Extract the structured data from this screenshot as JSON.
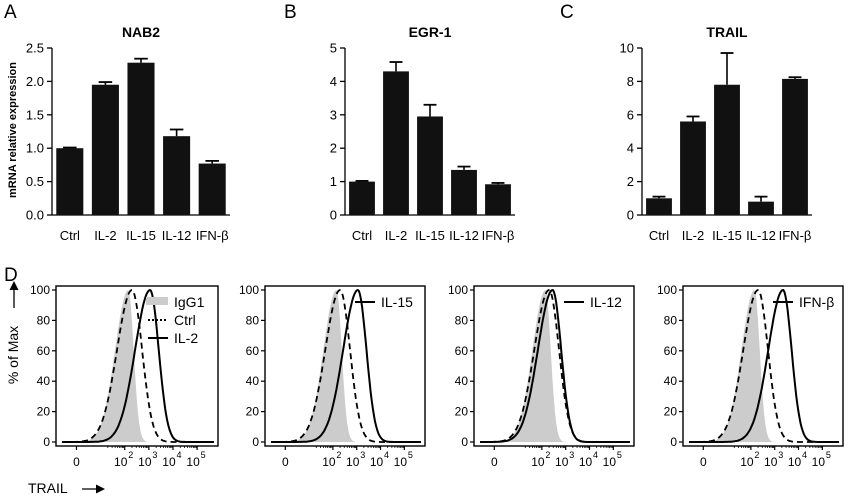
{
  "figure": {
    "panel_labels": [
      "A",
      "B",
      "C",
      "D"
    ],
    "y_axis_title": "mRNA relative expression",
    "hist_y_title": "% of Max",
    "hist_x_title": "TRAIL",
    "bar_color": "#111111",
    "isotype_fill": "#cccccc"
  },
  "chart_data": [
    {
      "type": "bar",
      "title": "NAB2",
      "ylabel": "mRNA relative expression",
      "categories": [
        "Ctrl",
        "IL-2",
        "IL-15",
        "IL-12",
        "IFN-β"
      ],
      "values": [
        1.0,
        1.95,
        2.28,
        1.18,
        0.77
      ],
      "errors": [
        0.01,
        0.04,
        0.06,
        0.1,
        0.04
      ],
      "ylim": [
        0,
        2.5
      ],
      "yticks": [
        "0.0",
        "0.5",
        "1.0",
        "1.5",
        "2.0",
        "2.5"
      ]
    },
    {
      "type": "bar",
      "title": "EGR-1",
      "ylabel": "",
      "categories": [
        "Ctrl",
        "IL-2",
        "IL-15",
        "IL-12",
        "IFN-β"
      ],
      "values": [
        1.0,
        4.3,
        2.95,
        1.35,
        0.92
      ],
      "errors": [
        0.02,
        0.28,
        0.35,
        0.1,
        0.04
      ],
      "ylim": [
        0,
        5
      ],
      "yticks": [
        "0",
        "1",
        "2",
        "3",
        "4",
        "5"
      ]
    },
    {
      "type": "bar",
      "title": "TRAIL",
      "ylabel": "",
      "categories": [
        "Ctrl",
        "IL-2",
        "IL-15",
        "IL-12",
        "IFN-β"
      ],
      "values": [
        1.0,
        5.6,
        7.8,
        0.8,
        8.15
      ],
      "errors": [
        0.1,
        0.3,
        1.9,
        0.3,
        0.1
      ],
      "ylim": [
        0,
        10
      ],
      "yticks": [
        "0",
        "2",
        "4",
        "6",
        "8",
        "10"
      ]
    },
    {
      "type": "area",
      "legend": [
        {
          "label": "IgG1",
          "style": "filled-gray"
        },
        {
          "label": "Ctrl",
          "style": "dotted"
        },
        {
          "label": "IL-2",
          "style": "solid"
        }
      ],
      "x_scale": "log",
      "xticks": [
        "0",
        "10^2",
        "10^3",
        "10^4",
        "10^5"
      ],
      "yticks": [
        "0",
        "20",
        "40",
        "60",
        "80",
        "100"
      ],
      "ylim": [
        0,
        100
      ],
      "series": {
        "IgG1": {
          "peak_decade": 2.15
        },
        "Ctrl": {
          "peak_decade": 2.3
        },
        "IL-2": {
          "peak_decade": 3.05
        }
      }
    },
    {
      "type": "area",
      "legend": [
        {
          "label": "IL-15",
          "style": "solid"
        }
      ],
      "x_scale": "log",
      "xticks": [
        "0",
        "10^2",
        "10^3",
        "10^4",
        "10^5"
      ],
      "yticks": [
        "0",
        "20",
        "40",
        "60",
        "80",
        "100"
      ],
      "ylim": [
        0,
        100
      ],
      "series": {
        "IgG1": {
          "peak_decade": 2.15
        },
        "Ctrl": {
          "peak_decade": 2.3
        },
        "IL-15": {
          "peak_decade": 3.05
        }
      }
    },
    {
      "type": "area",
      "legend": [
        {
          "label": "IL-12",
          "style": "solid"
        }
      ],
      "x_scale": "log",
      "xticks": [
        "0",
        "10^2",
        "10^3",
        "10^4",
        "10^5"
      ],
      "yticks": [
        "0",
        "20",
        "40",
        "60",
        "80",
        "100"
      ],
      "ylim": [
        0,
        100
      ],
      "series": {
        "IgG1": {
          "peak_decade": 2.15
        },
        "Ctrl": {
          "peak_decade": 2.3
        },
        "IL-12": {
          "peak_decade": 2.45
        }
      }
    },
    {
      "type": "area",
      "legend": [
        {
          "label": "IFN-β",
          "style": "solid"
        }
      ],
      "x_scale": "log",
      "xticks": [
        "0",
        "10^2",
        "10^3",
        "10^4",
        "10^5"
      ],
      "yticks": [
        "0",
        "20",
        "40",
        "60",
        "80",
        "100"
      ],
      "ylim": [
        0,
        100
      ],
      "series": {
        "IgG1": {
          "peak_decade": 2.15
        },
        "Ctrl": {
          "peak_decade": 2.3
        },
        "IFN-β": {
          "peak_decade": 3.35
        }
      }
    }
  ]
}
